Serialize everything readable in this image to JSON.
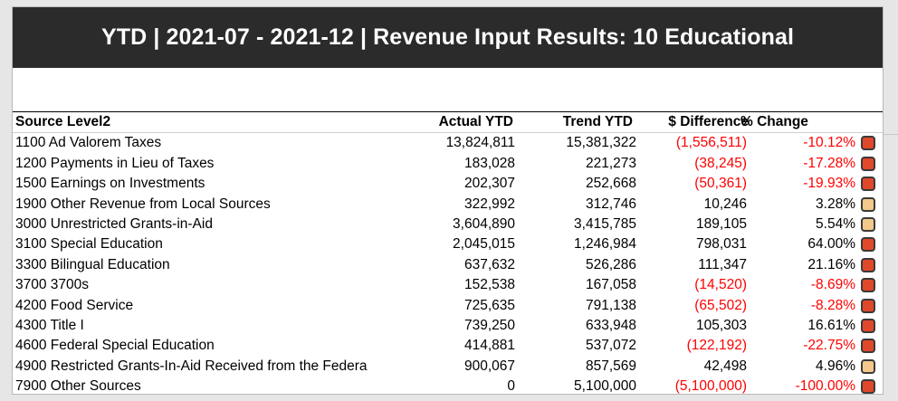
{
  "title": "YTD | 2021-07 - 2021-12 | Revenue Input Results: 10 Educational",
  "columns": {
    "source": "Source Level2",
    "actual": "Actual YTD",
    "trend": "Trend YTD",
    "difference": "$ Difference",
    "change": "% Change"
  },
  "rows": [
    {
      "source": "1100 Ad Valorem Taxes",
      "actual": "13,824,811",
      "trend": "15,381,322",
      "difference": "(1,556,511)",
      "change": "-10.12%",
      "negative": true,
      "indicator": "red"
    },
    {
      "source": "1200 Payments in Lieu of Taxes",
      "actual": "183,028",
      "trend": "221,273",
      "difference": "(38,245)",
      "change": "-17.28%",
      "negative": true,
      "indicator": "red"
    },
    {
      "source": "1500 Earnings on Investments",
      "actual": "202,307",
      "trend": "252,668",
      "difference": "(50,361)",
      "change": "-19.93%",
      "negative": true,
      "indicator": "red"
    },
    {
      "source": "1900 Other Revenue from Local Sources",
      "actual": "322,992",
      "trend": "312,746",
      "difference": "10,246",
      "change": "3.28%",
      "negative": false,
      "indicator": "tan"
    },
    {
      "source": "3000 Unrestricted Grants-in-Aid",
      "actual": "3,604,890",
      "trend": "3,415,785",
      "difference": "189,105",
      "change": "5.54%",
      "negative": false,
      "indicator": "tan"
    },
    {
      "source": "3100 Special Education",
      "actual": "2,045,015",
      "trend": "1,246,984",
      "difference": "798,031",
      "change": "64.00%",
      "negative": false,
      "indicator": "red"
    },
    {
      "source": "3300 Bilingual Education",
      "actual": "637,632",
      "trend": "526,286",
      "difference": "111,347",
      "change": "21.16%",
      "negative": false,
      "indicator": "red"
    },
    {
      "source": "3700 3700s",
      "actual": "152,538",
      "trend": "167,058",
      "difference": "(14,520)",
      "change": "-8.69%",
      "negative": true,
      "indicator": "red"
    },
    {
      "source": "4200 Food Service",
      "actual": "725,635",
      "trend": "791,138",
      "difference": "(65,502)",
      "change": "-8.28%",
      "negative": true,
      "indicator": "red"
    },
    {
      "source": "4300 Title I",
      "actual": "739,250",
      "trend": "633,948",
      "difference": "105,303",
      "change": "16.61%",
      "negative": false,
      "indicator": "red"
    },
    {
      "source": "4600 Federal Special Education",
      "actual": "414,881",
      "trend": "537,072",
      "difference": "(122,192)",
      "change": "-22.75%",
      "negative": true,
      "indicator": "red"
    },
    {
      "source": "4900 Restricted Grants-In-Aid Received from the Federa",
      "actual": "900,067",
      "trend": "857,569",
      "difference": "42,498",
      "change": "4.96%",
      "negative": false,
      "indicator": "tan"
    },
    {
      "source": "7900 Other Sources",
      "actual": "0",
      "trend": "5,100,000",
      "difference": "(5,100,000)",
      "change": "-100.00%",
      "negative": true,
      "indicator": "red"
    }
  ],
  "colors": {
    "title_bg": "#2b2b2b",
    "negative_text": "#ff0000",
    "indicator_red": "#e0482a",
    "indicator_tan": "#f2c98a"
  }
}
